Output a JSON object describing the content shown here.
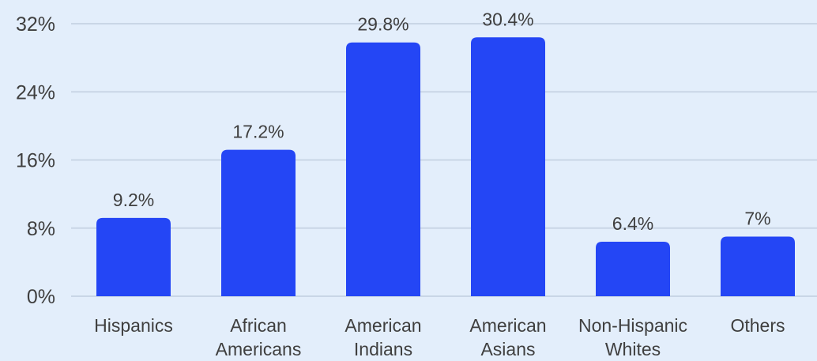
{
  "chart_data": {
    "type": "bar",
    "categories": [
      [
        "Hispanics"
      ],
      [
        "African",
        "Americans"
      ],
      [
        "American",
        "Indians"
      ],
      [
        "American",
        "Asians"
      ],
      [
        "Non-Hispanic",
        "Whites"
      ],
      [
        "Others"
      ]
    ],
    "values": [
      9.2,
      17.2,
      29.8,
      30.4,
      6.4,
      7
    ],
    "data_labels": [
      "9.2%",
      "17.2%",
      "29.8%",
      "30.4%",
      "6.4%",
      "7%"
    ],
    "y_ticks": [
      0,
      8,
      16,
      24,
      32
    ],
    "y_tick_labels": [
      "0%",
      "8%",
      "16%",
      "24%",
      "32%"
    ],
    "ylim": [
      0,
      32
    ],
    "grid": true,
    "legend": "none",
    "colors": {
      "bar": "#2446f5",
      "background": "#e3eefb",
      "grid": "#c9d6e6",
      "text": "#3f3f3f"
    }
  }
}
